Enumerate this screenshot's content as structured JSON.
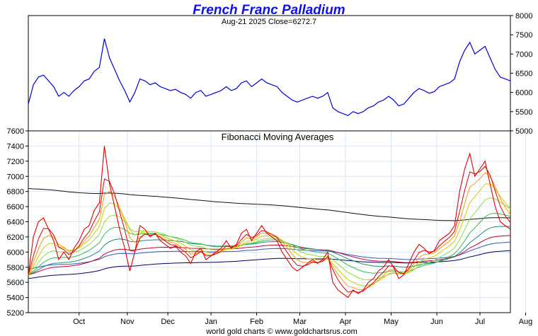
{
  "chart_data": [
    {
      "type": "line",
      "title": "French Franc Palladium",
      "subtitle": "Aug-21  2025   Close=6272.7",
      "close": 6272.7,
      "y_axis_side": "right",
      "ylim": [
        5000,
        8000
      ],
      "yticks": [
        5000,
        5500,
        6000,
        6500,
        7000,
        7500,
        8000
      ],
      "grid": false,
      "series": [
        {
          "name": "Price",
          "color": "#0000dd",
          "values": [
            5700,
            6200,
            6400,
            6450,
            6300,
            6150,
            5900,
            6000,
            5900,
            6050,
            6150,
            6300,
            6350,
            6550,
            6650,
            7400,
            6900,
            6600,
            6300,
            6050,
            5750,
            6000,
            6350,
            6300,
            6200,
            6250,
            6150,
            6100,
            6050,
            6080,
            6000,
            5950,
            5850,
            6000,
            6050,
            5900,
            5950,
            6000,
            6050,
            6150,
            6050,
            6100,
            6250,
            6300,
            6150,
            6250,
            6350,
            6250,
            6200,
            6150,
            6000,
            5900,
            5800,
            5750,
            5800,
            5850,
            5900,
            5850,
            5900,
            6000,
            5600,
            5500,
            5450,
            5400,
            5500,
            5450,
            5500,
            5600,
            5650,
            5750,
            5800,
            5900,
            5800,
            5650,
            5700,
            5850,
            6000,
            6100,
            6050,
            5980,
            6020,
            6150,
            6200,
            6250,
            6350,
            6800,
            7100,
            7300,
            7000,
            7100,
            7200,
            6900,
            6600,
            6400,
            6350,
            6300
          ]
        }
      ]
    },
    {
      "type": "line",
      "title": "Fibonacci Moving Averages",
      "y_axis_side": "left",
      "ylim": [
        5200,
        7600
      ],
      "yticks": [
        5200,
        5400,
        5600,
        5800,
        6000,
        6200,
        6400,
        6600,
        6800,
        7000,
        7200,
        7400,
        7600
      ],
      "grid": true,
      "x_tick_labels": [
        "Oct",
        "Nov",
        "Dec",
        "Jan",
        "Feb",
        "Mar",
        "Apr",
        "May",
        "Jun",
        "Jul",
        "Aug"
      ],
      "x_tick_positions": [
        10,
        19.5,
        27.5,
        36,
        45,
        53.5,
        62.5,
        71.5,
        80.5,
        89,
        98
      ],
      "ma_periods": [
        3,
        5,
        8,
        13,
        21,
        34,
        55,
        89,
        144,
        233
      ],
      "ma_colors": [
        "#e00000",
        "#ff9900",
        "#cccc00",
        "#88dd44",
        "#33bb55",
        "#228877",
        "#cc0033",
        "#3355bb",
        "#000066",
        "#111111"
      ],
      "series": [
        {
          "name": "Price",
          "color": "#e00000",
          "values": [
            5700,
            6200,
            6400,
            6450,
            6300,
            6150,
            5900,
            6000,
            5900,
            6050,
            6150,
            6300,
            6350,
            6550,
            6650,
            7400,
            6900,
            6600,
            6300,
            6050,
            5750,
            6000,
            6350,
            6300,
            6200,
            6250,
            6150,
            6100,
            6050,
            6080,
            6000,
            5950,
            5850,
            6000,
            6050,
            5900,
            5950,
            6000,
            6050,
            6150,
            6050,
            6100,
            6250,
            6300,
            6150,
            6250,
            6350,
            6250,
            6200,
            6150,
            6000,
            5900,
            5800,
            5750,
            5800,
            5850,
            5900,
            5850,
            5900,
            6000,
            5600,
            5500,
            5450,
            5400,
            5500,
            5450,
            5500,
            5600,
            5650,
            5750,
            5800,
            5900,
            5800,
            5650,
            5700,
            5850,
            6000,
            6100,
            6050,
            5980,
            6020,
            6150,
            6200,
            6250,
            6350,
            6800,
            7100,
            7300,
            7000,
            7100,
            7200,
            6900,
            6600,
            6400,
            6350,
            6300
          ]
        }
      ],
      "long_ma_start_values": {
        "233": 6850,
        "144": 5650,
        "89": 5780
      }
    }
  ],
  "footer": "world gold charts © www.goldchartsrus.com"
}
